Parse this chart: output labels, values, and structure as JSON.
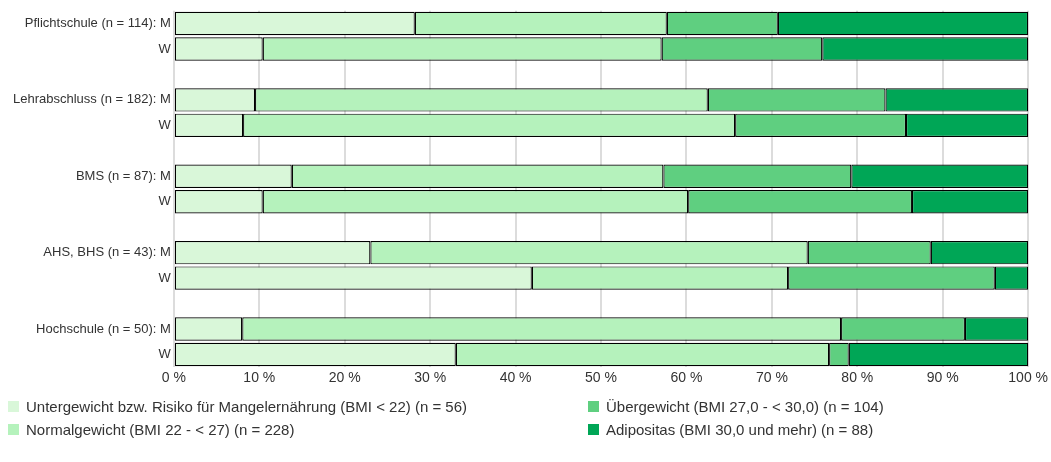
{
  "chart_data": {
    "type": "bar",
    "orientation": "horizontal",
    "stacked": true,
    "categories": [
      "Pflichtschule (n = 114): M",
      "W",
      null,
      "Lehrabschluss (n = 182): M",
      "W",
      null,
      "BMS (n = 87): M",
      "W",
      null,
      "AHS, BHS (n = 43): M",
      "W",
      null,
      "Hochschule (n = 50): M",
      "W"
    ],
    "series": [
      {
        "name": "Untergewicht bzw. Risiko für Mangelernährung (BMI < 22) (n = 56)",
        "color": "#d9f7d9",
        "values": [
          28.2,
          10.4,
          null,
          9.5,
          8.1,
          null,
          13.8,
          10.4,
          null,
          23.0,
          41.9,
          null,
          8.0,
          33.0
        ]
      },
      {
        "name": "Normalgewicht (BMI 22 - < 27) (n = 228)",
        "color": "#b5f2bc",
        "values": [
          29.5,
          46.7,
          null,
          53.0,
          57.6,
          null,
          43.5,
          49.8,
          null,
          51.2,
          30.0,
          null,
          70.1,
          43.7
        ]
      },
      {
        "name": "Übergewicht (BMI 27,0 - < 30,0) (n = 104)",
        "color": "#5fcf80",
        "values": [
          13.0,
          18.8,
          null,
          20.8,
          20.0,
          null,
          22.0,
          26.2,
          null,
          14.4,
          24.2,
          null,
          14.5,
          2.3
        ]
      },
      {
        "name": "Adipositas (BMI 30,0 und mehr) (n = 88)",
        "color": "#00a656",
        "values": [
          29.3,
          24.1,
          null,
          16.7,
          14.3,
          null,
          20.7,
          13.6,
          null,
          11.4,
          3.9,
          null,
          7.4,
          21.0
        ]
      }
    ],
    "xlim": [
      0,
      100
    ],
    "xticks": [
      {
        "value": 0,
        "label": "0 %"
      },
      {
        "value": 10,
        "label": "10 %"
      },
      {
        "value": 20,
        "label": "20 %"
      },
      {
        "value": 30,
        "label": "30 %"
      },
      {
        "value": 40,
        "label": "40 %"
      },
      {
        "value": 50,
        "label": "50 %"
      },
      {
        "value": 60,
        "label": "60 %"
      },
      {
        "value": 70,
        "label": "70 %"
      },
      {
        "value": 80,
        "label": "80 %"
      },
      {
        "value": 90,
        "label": "90 %"
      },
      {
        "value": 100,
        "label": "100 %"
      }
    ],
    "grid": "x",
    "legend": "bottom"
  }
}
